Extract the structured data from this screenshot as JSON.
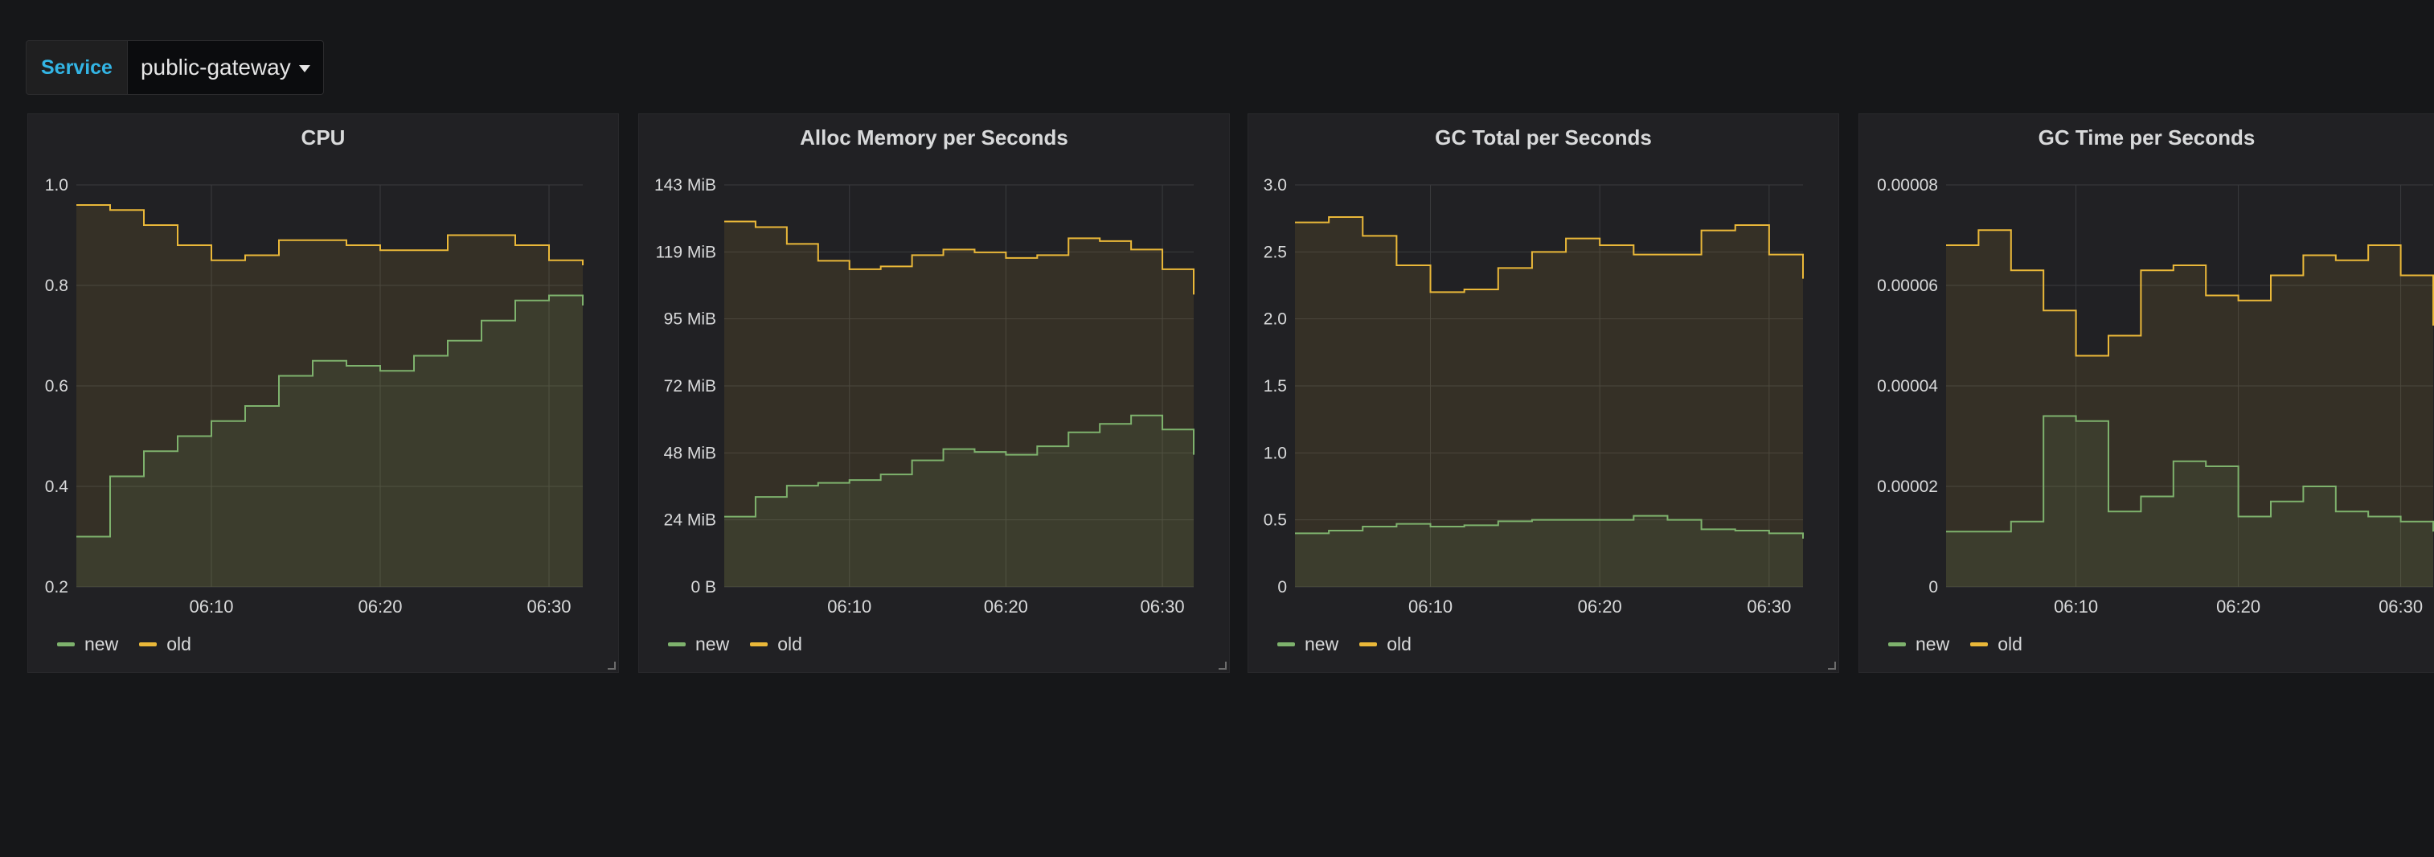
{
  "variable": {
    "label": "Service",
    "value": "public-gateway"
  },
  "colors": {
    "new": "#7eb26d",
    "old": "#eab839"
  },
  "panels": [
    {
      "title": "CPU",
      "legend": {
        "new": "new",
        "old": "old"
      }
    },
    {
      "title": "Alloc Memory per Seconds",
      "legend": {
        "new": "new",
        "old": "old"
      }
    },
    {
      "title": "GC Total per Seconds",
      "legend": {
        "new": "new",
        "old": "old"
      }
    },
    {
      "title": "GC Time per Seconds",
      "legend": {
        "new": "new",
        "old": "old"
      }
    }
  ],
  "chart_data": [
    {
      "type": "area",
      "title": "CPU",
      "x": [
        "06:02",
        "06:04",
        "06:06",
        "06:08",
        "06:10",
        "06:12",
        "06:14",
        "06:16",
        "06:18",
        "06:20",
        "06:22",
        "06:24",
        "06:26",
        "06:28",
        "06:30",
        "06:32"
      ],
      "xticks": [
        "06:10",
        "06:20",
        "06:30"
      ],
      "yticks": [
        "0.2",
        "0.4",
        "0.6",
        "0.8",
        "1.0"
      ],
      "ylim": [
        0.2,
        1.0
      ],
      "series": [
        {
          "name": "new",
          "values": [
            0.3,
            0.42,
            0.47,
            0.5,
            0.53,
            0.56,
            0.62,
            0.65,
            0.64,
            0.63,
            0.66,
            0.69,
            0.73,
            0.77,
            0.78,
            0.76
          ]
        },
        {
          "name": "old",
          "values": [
            0.96,
            0.95,
            0.92,
            0.88,
            0.85,
            0.86,
            0.89,
            0.89,
            0.88,
            0.87,
            0.87,
            0.9,
            0.9,
            0.88,
            0.85,
            0.84
          ]
        }
      ]
    },
    {
      "type": "area",
      "title": "Alloc Memory per Seconds",
      "x": [
        "06:02",
        "06:04",
        "06:06",
        "06:08",
        "06:10",
        "06:12",
        "06:14",
        "06:16",
        "06:18",
        "06:20",
        "06:22",
        "06:24",
        "06:26",
        "06:28",
        "06:30",
        "06:32"
      ],
      "xticks": [
        "06:10",
        "06:20",
        "06:30"
      ],
      "yticks": [
        "0 B",
        "24 MiB",
        "48 MiB",
        "72 MiB",
        "95 MiB",
        "119 MiB",
        "143 MiB"
      ],
      "ylim": [
        0,
        143
      ],
      "series": [
        {
          "name": "new",
          "values": [
            25,
            32,
            36,
            37,
            38,
            40,
            45,
            49,
            48,
            47,
            50,
            55,
            58,
            61,
            56,
            47
          ]
        },
        {
          "name": "old",
          "values": [
            130,
            128,
            122,
            116,
            113,
            114,
            118,
            120,
            119,
            117,
            118,
            124,
            123,
            120,
            113,
            104
          ]
        }
      ]
    },
    {
      "type": "area",
      "title": "GC Total per Seconds",
      "x": [
        "06:02",
        "06:04",
        "06:06",
        "06:08",
        "06:10",
        "06:12",
        "06:14",
        "06:16",
        "06:18",
        "06:20",
        "06:22",
        "06:24",
        "06:26",
        "06:28",
        "06:30",
        "06:32"
      ],
      "xticks": [
        "06:10",
        "06:20",
        "06:30"
      ],
      "yticks": [
        "0",
        "0.5",
        "1.0",
        "1.5",
        "2.0",
        "2.5",
        "3.0"
      ],
      "ylim": [
        0,
        3.0
      ],
      "series": [
        {
          "name": "new",
          "values": [
            0.4,
            0.42,
            0.45,
            0.47,
            0.45,
            0.46,
            0.49,
            0.5,
            0.5,
            0.5,
            0.53,
            0.5,
            0.43,
            0.42,
            0.4,
            0.36
          ]
        },
        {
          "name": "old",
          "values": [
            2.72,
            2.76,
            2.62,
            2.4,
            2.2,
            2.22,
            2.38,
            2.5,
            2.6,
            2.55,
            2.48,
            2.48,
            2.66,
            2.7,
            2.48,
            2.3
          ]
        }
      ]
    },
    {
      "type": "area",
      "title": "GC Time per Seconds",
      "x": [
        "06:02",
        "06:04",
        "06:06",
        "06:08",
        "06:10",
        "06:12",
        "06:14",
        "06:16",
        "06:18",
        "06:20",
        "06:22",
        "06:24",
        "06:26",
        "06:28",
        "06:30",
        "06:32"
      ],
      "xticks": [
        "06:10",
        "06:20",
        "06:30"
      ],
      "yticks": [
        "0",
        "0.00002",
        "0.00004",
        "0.00006",
        "0.00008"
      ],
      "ylim": [
        0,
        8e-05
      ],
      "series": [
        {
          "name": "new",
          "values": [
            1.1e-05,
            1.1e-05,
            1.3e-05,
            3.4e-05,
            3.3e-05,
            1.5e-05,
            1.8e-05,
            2.5e-05,
            2.4e-05,
            1.4e-05,
            1.7e-05,
            2e-05,
            1.5e-05,
            1.4e-05,
            1.3e-05,
            1.1e-05
          ]
        },
        {
          "name": "old",
          "values": [
            6.8e-05,
            7.1e-05,
            6.3e-05,
            5.5e-05,
            4.6e-05,
            5e-05,
            6.3e-05,
            6.4e-05,
            5.8e-05,
            5.7e-05,
            6.2e-05,
            6.6e-05,
            6.5e-05,
            6.8e-05,
            6.2e-05,
            5.2e-05
          ]
        }
      ]
    }
  ]
}
